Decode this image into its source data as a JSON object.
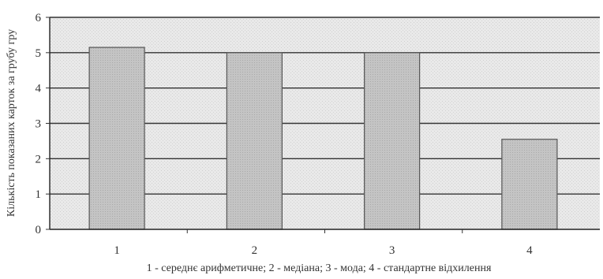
{
  "chart_data": {
    "type": "bar",
    "categories": [
      "1",
      "2",
      "3",
      "4"
    ],
    "values": [
      5.15,
      5.0,
      5.0,
      2.55
    ],
    "ylim": [
      0,
      6
    ],
    "yticks": [
      "0",
      "1",
      "2",
      "3",
      "4",
      "5",
      "6"
    ],
    "ylabel": "Кількість показаних карток за грубу гру",
    "xlabel": "1 - середнє арифметичне; 2 - медіана; 3 - мода; 4 - стандартне відхилення",
    "grid": true,
    "legend": "none",
    "colors": {
      "plot_background": "#e6e6e6",
      "bar_fill": "#bdbdbd",
      "bar_stroke": "#555555",
      "gridline": "#333333"
    }
  }
}
